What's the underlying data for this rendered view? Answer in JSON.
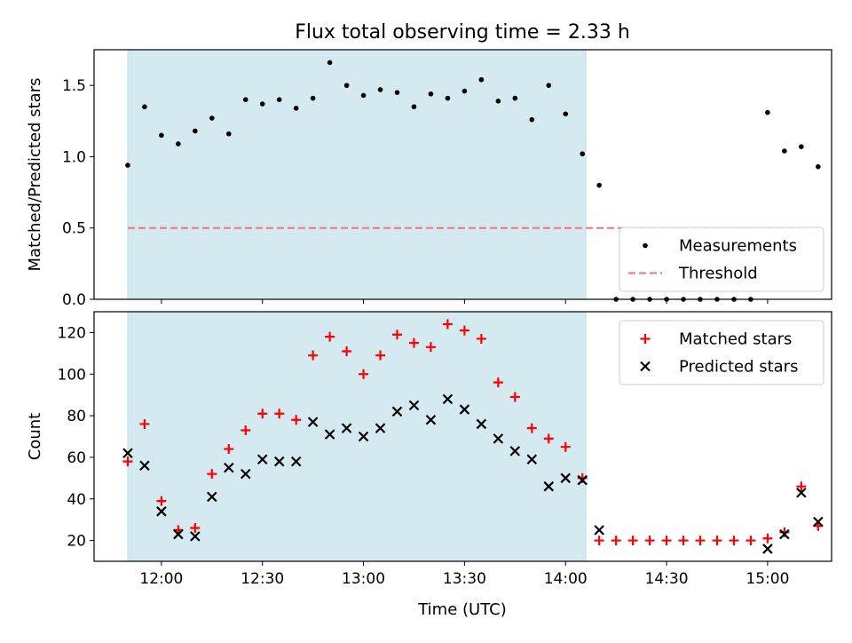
{
  "figure": {
    "title": "Flux total observing time = 2.33 h",
    "xlabel": "Time (UTC)"
  },
  "chart_data": [
    {
      "type": "scatter",
      "panel": "top",
      "ylabel": "Matched/Predicted stars",
      "xlim": [
        "11:40",
        "15:19"
      ],
      "ylim": [
        0,
        1.75
      ],
      "yticks": [
        0.0,
        0.5,
        1.0,
        1.5
      ],
      "ytick_labels": [
        "0.0",
        "0.5",
        "1.0",
        "1.5"
      ],
      "shaded_region": {
        "start": "11:50",
        "end": "14:06",
        "color": "#d4eaf0"
      },
      "threshold": {
        "label": "Threshold",
        "value": 0.5,
        "from": "11:50",
        "to": "15:10",
        "color": "#f08080"
      },
      "legend": {
        "position": "lower-right",
        "entries": [
          "Measurements",
          "Threshold"
        ]
      },
      "series": [
        {
          "name": "Measurements",
          "color": "#000000",
          "marker": "dot",
          "points": [
            [
              "11:50",
              0.94
            ],
            [
              "11:55",
              1.35
            ],
            [
              "12:00",
              1.15
            ],
            [
              "12:05",
              1.09
            ],
            [
              "12:10",
              1.18
            ],
            [
              "12:15",
              1.27
            ],
            [
              "12:20",
              1.16
            ],
            [
              "12:25",
              1.4
            ],
            [
              "12:30",
              1.37
            ],
            [
              "12:35",
              1.4
            ],
            [
              "12:40",
              1.34
            ],
            [
              "12:45",
              1.41
            ],
            [
              "12:50",
              1.66
            ],
            [
              "12:55",
              1.5
            ],
            [
              "13:00",
              1.43
            ],
            [
              "13:05",
              1.47
            ],
            [
              "13:10",
              1.45
            ],
            [
              "13:15",
              1.35
            ],
            [
              "13:20",
              1.44
            ],
            [
              "13:25",
              1.41
            ],
            [
              "13:30",
              1.46
            ],
            [
              "13:35",
              1.54
            ],
            [
              "13:40",
              1.39
            ],
            [
              "13:45",
              1.41
            ],
            [
              "13:50",
              1.26
            ],
            [
              "13:55",
              1.5
            ],
            [
              "14:00",
              1.3
            ],
            [
              "14:05",
              1.02
            ],
            [
              "14:10",
              0.8
            ],
            [
              "14:15",
              0.0
            ],
            [
              "14:20",
              0.0
            ],
            [
              "14:25",
              0.0
            ],
            [
              "14:30",
              0.0
            ],
            [
              "14:35",
              0.0
            ],
            [
              "14:40",
              0.0
            ],
            [
              "14:45",
              0.0
            ],
            [
              "14:50",
              0.0
            ],
            [
              "14:55",
              0.0
            ],
            [
              "15:00",
              1.31
            ],
            [
              "15:05",
              1.04
            ],
            [
              "15:10",
              1.07
            ],
            [
              "15:15",
              0.93
            ]
          ]
        }
      ]
    },
    {
      "type": "scatter",
      "panel": "bottom",
      "ylabel": "Count",
      "xlim": [
        "11:40",
        "15:19"
      ],
      "ylim": [
        10,
        130
      ],
      "yticks": [
        20,
        40,
        60,
        80,
        100,
        120
      ],
      "ytick_labels": [
        "20",
        "40",
        "60",
        "80",
        "100",
        "120"
      ],
      "xticks": [
        "12:00",
        "12:30",
        "13:00",
        "13:30",
        "14:00",
        "14:30",
        "15:00"
      ],
      "xtick_labels": [
        "12:00",
        "12:30",
        "13:00",
        "13:30",
        "14:00",
        "14:30",
        "15:00"
      ],
      "shaded_region": {
        "start": "11:50",
        "end": "14:06",
        "color": "#d4eaf0"
      },
      "legend": {
        "position": "top-right",
        "entries": [
          "Matched stars",
          "Predicted stars"
        ]
      },
      "series": [
        {
          "name": "Matched stars",
          "color": "#ff0000",
          "marker": "plus",
          "points": [
            [
              "11:50",
              58
            ],
            [
              "11:55",
              76
            ],
            [
              "12:00",
              39
            ],
            [
              "12:05",
              25
            ],
            [
              "12:10",
              26
            ],
            [
              "12:15",
              52
            ],
            [
              "12:20",
              64
            ],
            [
              "12:25",
              73
            ],
            [
              "12:30",
              81
            ],
            [
              "12:35",
              81
            ],
            [
              "12:40",
              78
            ],
            [
              "12:45",
              109
            ],
            [
              "12:50",
              118
            ],
            [
              "12:55",
              111
            ],
            [
              "13:00",
              100
            ],
            [
              "13:05",
              109
            ],
            [
              "13:10",
              119
            ],
            [
              "13:15",
              115
            ],
            [
              "13:20",
              113
            ],
            [
              "13:25",
              124
            ],
            [
              "13:30",
              121
            ],
            [
              "13:35",
              117
            ],
            [
              "13:40",
              96
            ],
            [
              "13:45",
              89
            ],
            [
              "13:50",
              74
            ],
            [
              "13:55",
              69
            ],
            [
              "14:00",
              65
            ],
            [
              "14:05",
              50
            ],
            [
              "14:10",
              20
            ],
            [
              "14:15",
              20
            ],
            [
              "14:20",
              20
            ],
            [
              "14:25",
              20
            ],
            [
              "14:30",
              20
            ],
            [
              "14:35",
              20
            ],
            [
              "14:40",
              20
            ],
            [
              "14:45",
              20
            ],
            [
              "14:50",
              20
            ],
            [
              "14:55",
              20
            ],
            [
              "15:00",
              21
            ],
            [
              "15:05",
              24
            ],
            [
              "15:10",
              46
            ],
            [
              "15:15",
              27
            ]
          ]
        },
        {
          "name": "Predicted stars",
          "color": "#000000",
          "marker": "x",
          "points": [
            [
              "11:50",
              62
            ],
            [
              "11:55",
              56
            ],
            [
              "12:00",
              34
            ],
            [
              "12:05",
              23
            ],
            [
              "12:10",
              22
            ],
            [
              "12:15",
              41
            ],
            [
              "12:20",
              55
            ],
            [
              "12:25",
              52
            ],
            [
              "12:30",
              59
            ],
            [
              "12:35",
              58
            ],
            [
              "12:40",
              58
            ],
            [
              "12:45",
              77
            ],
            [
              "12:50",
              71
            ],
            [
              "12:55",
              74
            ],
            [
              "13:00",
              70
            ],
            [
              "13:05",
              74
            ],
            [
              "13:10",
              82
            ],
            [
              "13:15",
              85
            ],
            [
              "13:20",
              78
            ],
            [
              "13:25",
              88
            ],
            [
              "13:30",
              83
            ],
            [
              "13:35",
              76
            ],
            [
              "13:40",
              69
            ],
            [
              "13:45",
              63
            ],
            [
              "13:50",
              59
            ],
            [
              "13:55",
              46
            ],
            [
              "14:00",
              50
            ],
            [
              "14:05",
              49
            ],
            [
              "14:10",
              25
            ],
            [
              "15:00",
              16
            ],
            [
              "15:05",
              23
            ],
            [
              "15:10",
              43
            ],
            [
              "15:15",
              29
            ]
          ]
        }
      ]
    }
  ]
}
